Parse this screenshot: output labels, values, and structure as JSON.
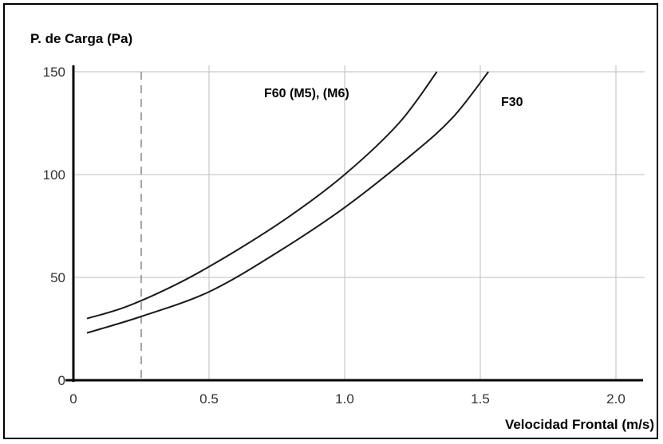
{
  "chart_data": {
    "type": "line",
    "ylabel": "P. de Carga (Pa)",
    "xlabel": "Velocidad Frontal (m/s)",
    "xlim": [
      0,
      2.1
    ],
    "ylim": [
      0,
      150
    ],
    "x_ticks": [
      "0",
      "0.5",
      "1.0",
      "1.5",
      "2.0"
    ],
    "x_tick_values": [
      0,
      0.5,
      1.0,
      1.5,
      2.0
    ],
    "y_ticks": [
      "0",
      "50",
      "100",
      "150"
    ],
    "y_tick_values": [
      0,
      50,
      100,
      150
    ],
    "grid": true,
    "reference_line": {
      "x": 0.25,
      "style": "dashed"
    },
    "series": [
      {
        "name": "F60 (M5),  (M6)",
        "x": [
          0.05,
          0.2,
          0.4,
          0.6,
          0.8,
          1.0,
          1.2,
          1.34
        ],
        "y": [
          30,
          36,
          48,
          63,
          80,
          100,
          125,
          150
        ]
      },
      {
        "name": "F30",
        "x": [
          0.05,
          0.25,
          0.5,
          0.75,
          1.0,
          1.25,
          1.4,
          1.53
        ],
        "y": [
          23,
          31,
          43,
          62,
          84,
          110,
          128,
          150
        ]
      }
    ],
    "colors": {
      "axis": "#000000",
      "grid": "#bdbdbd",
      "series": "#1a1a1a"
    }
  }
}
